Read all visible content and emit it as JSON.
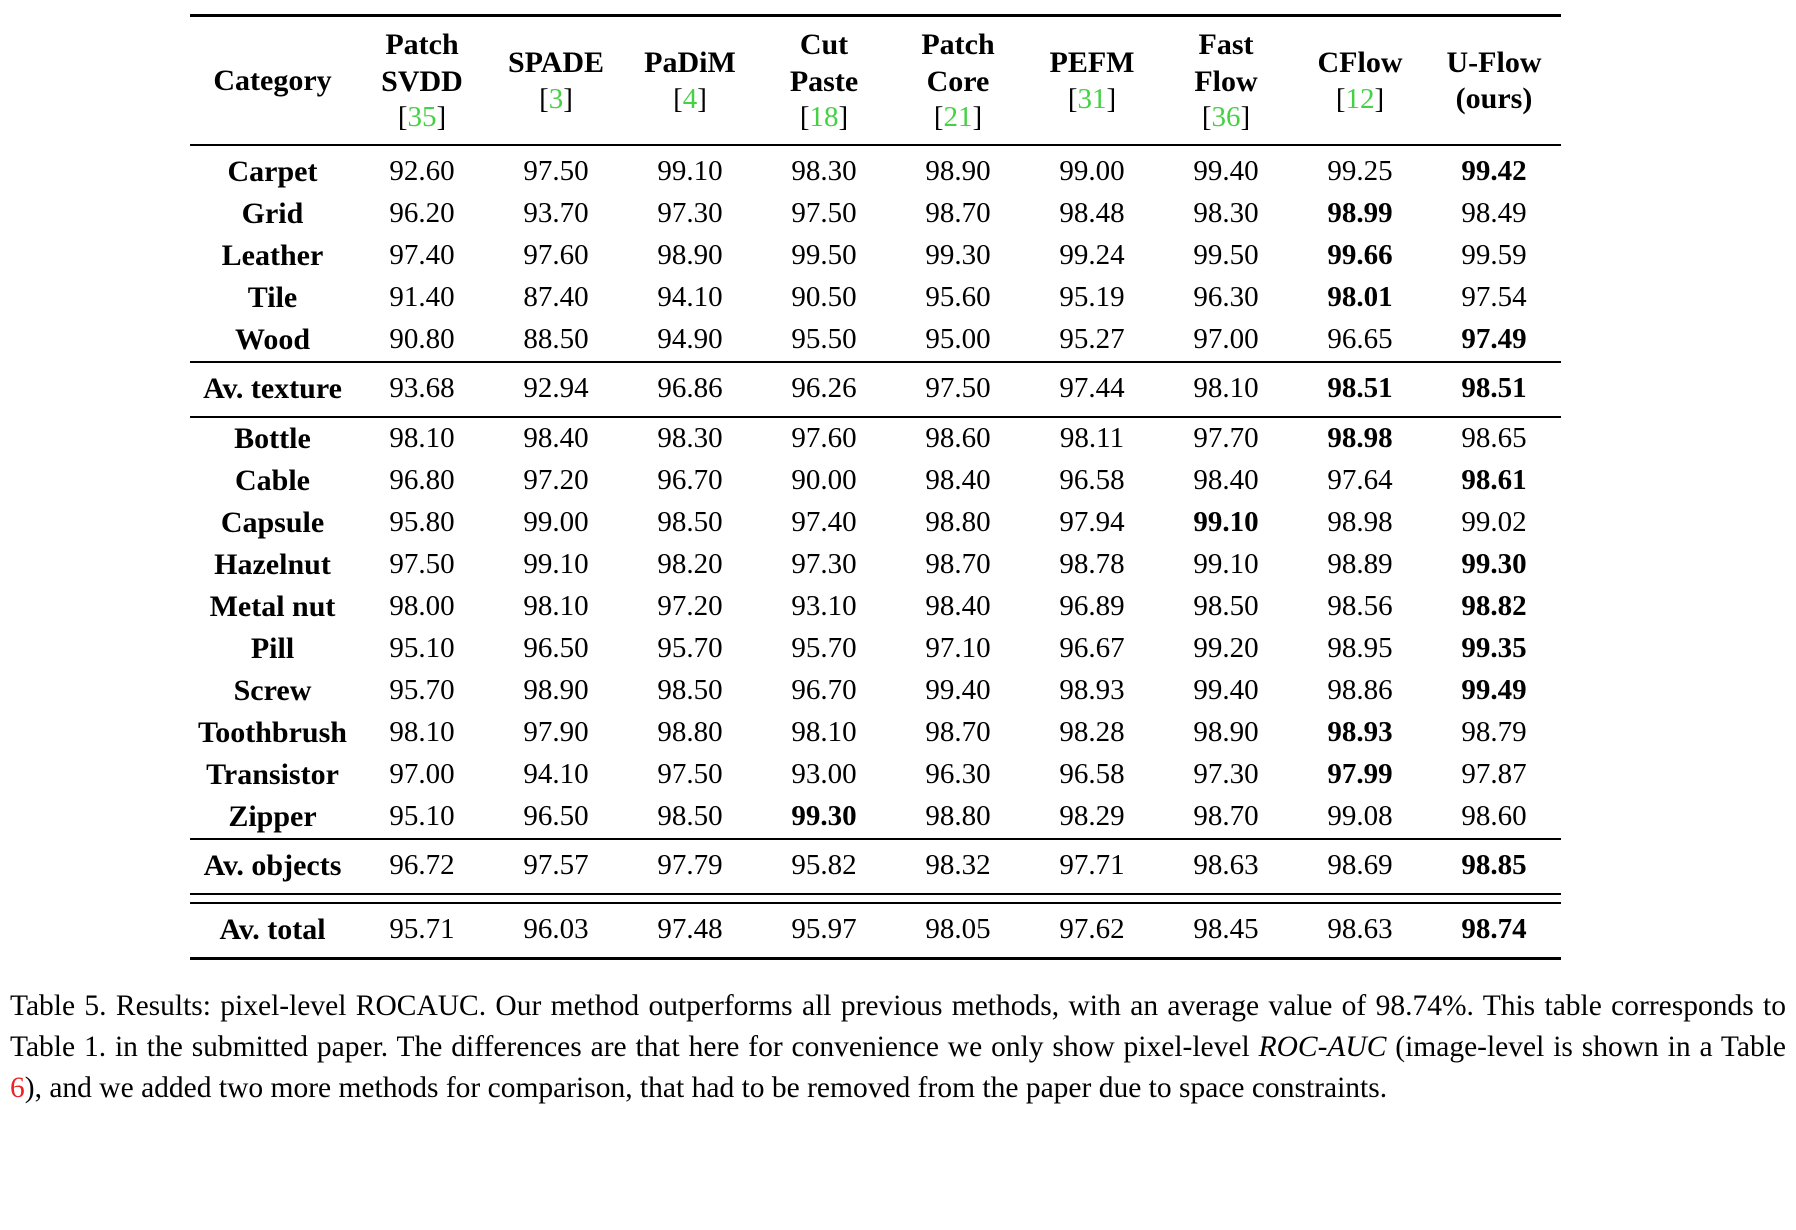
{
  "colors": {
    "citation_green": "#44d144",
    "link_red": "#ee2222"
  },
  "table": {
    "columns": [
      {
        "key": "category",
        "label": "Category",
        "cite": null
      },
      {
        "key": "patch-svdd",
        "label": "Patch\nSVDD",
        "cite": "35"
      },
      {
        "key": "spade",
        "label": "SPADE",
        "cite": "3"
      },
      {
        "key": "padim",
        "label": "PaDiM",
        "cite": "4"
      },
      {
        "key": "cut-paste",
        "label": "Cut\nPaste",
        "cite": "18"
      },
      {
        "key": "patch-core",
        "label": "Patch\nCore",
        "cite": "21"
      },
      {
        "key": "pefm",
        "label": "PEFM",
        "cite": "31"
      },
      {
        "key": "fast-flow",
        "label": "Fast\nFlow",
        "cite": "36"
      },
      {
        "key": "cflow",
        "label": "CFlow",
        "cite": "12"
      },
      {
        "key": "u-flow",
        "label": "U-Flow\n(ours)",
        "cite": null
      }
    ],
    "sections": [
      {
        "name": "textures",
        "rows": [
          {
            "category": "Carpet",
            "values": [
              "92.60",
              "97.50",
              "99.10",
              "98.30",
              "98.90",
              "99.00",
              "99.40",
              "99.25",
              "99.42"
            ],
            "bold": [
              8
            ]
          },
          {
            "category": "Grid",
            "values": [
              "96.20",
              "93.70",
              "97.30",
              "97.50",
              "98.70",
              "98.48",
              "98.30",
              "98.99",
              "98.49"
            ],
            "bold": [
              7
            ]
          },
          {
            "category": "Leather",
            "values": [
              "97.40",
              "97.60",
              "98.90",
              "99.50",
              "99.30",
              "99.24",
              "99.50",
              "99.66",
              "99.59"
            ],
            "bold": [
              7
            ]
          },
          {
            "category": "Tile",
            "values": [
              "91.40",
              "87.40",
              "94.10",
              "90.50",
              "95.60",
              "95.19",
              "96.30",
              "98.01",
              "97.54"
            ],
            "bold": [
              7
            ]
          },
          {
            "category": "Wood",
            "values": [
              "90.80",
              "88.50",
              "94.90",
              "95.50",
              "95.00",
              "95.27",
              "97.00",
              "96.65",
              "97.49"
            ],
            "bold": [
              8
            ]
          }
        ]
      },
      {
        "name": "average-texture",
        "avg": true,
        "rows": [
          {
            "category": "Av. texture",
            "values": [
              "93.68",
              "92.94",
              "96.86",
              "96.26",
              "97.50",
              "97.44",
              "98.10",
              "98.51",
              "98.51"
            ],
            "bold": [
              7,
              8
            ]
          }
        ]
      },
      {
        "name": "objects",
        "rows": [
          {
            "category": "Bottle",
            "values": [
              "98.10",
              "98.40",
              "98.30",
              "97.60",
              "98.60",
              "98.11",
              "97.70",
              "98.98",
              "98.65"
            ],
            "bold": [
              7
            ]
          },
          {
            "category": "Cable",
            "values": [
              "96.80",
              "97.20",
              "96.70",
              "90.00",
              "98.40",
              "96.58",
              "98.40",
              "97.64",
              "98.61"
            ],
            "bold": [
              8
            ]
          },
          {
            "category": "Capsule",
            "values": [
              "95.80",
              "99.00",
              "98.50",
              "97.40",
              "98.80",
              "97.94",
              "99.10",
              "98.98",
              "99.02"
            ],
            "bold": [
              6
            ]
          },
          {
            "category": "Hazelnut",
            "values": [
              "97.50",
              "99.10",
              "98.20",
              "97.30",
              "98.70",
              "98.78",
              "99.10",
              "98.89",
              "99.30"
            ],
            "bold": [
              8
            ]
          },
          {
            "category": "Metal nut",
            "values": [
              "98.00",
              "98.10",
              "97.20",
              "93.10",
              "98.40",
              "96.89",
              "98.50",
              "98.56",
              "98.82"
            ],
            "bold": [
              8
            ]
          },
          {
            "category": "Pill",
            "values": [
              "95.10",
              "96.50",
              "95.70",
              "95.70",
              "97.10",
              "96.67",
              "99.20",
              "98.95",
              "99.35"
            ],
            "bold": [
              8
            ]
          },
          {
            "category": "Screw",
            "values": [
              "95.70",
              "98.90",
              "98.50",
              "96.70",
              "99.40",
              "98.93",
              "99.40",
              "98.86",
              "99.49"
            ],
            "bold": [
              8
            ]
          },
          {
            "category": "Toothbrush",
            "values": [
              "98.10",
              "97.90",
              "98.80",
              "98.10",
              "98.70",
              "98.28",
              "98.90",
              "98.93",
              "98.79"
            ],
            "bold": [
              7
            ]
          },
          {
            "category": "Transistor",
            "values": [
              "97.00",
              "94.10",
              "97.50",
              "93.00",
              "96.30",
              "96.58",
              "97.30",
              "97.99",
              "97.87"
            ],
            "bold": [
              7
            ]
          },
          {
            "category": "Zipper",
            "values": [
              "95.10",
              "96.50",
              "98.50",
              "99.30",
              "98.80",
              "98.29",
              "98.70",
              "99.08",
              "98.60"
            ],
            "bold": [
              3
            ]
          }
        ]
      },
      {
        "name": "average-objects",
        "avg": true,
        "rows": [
          {
            "category": "Av. objects",
            "values": [
              "96.72",
              "97.57",
              "97.79",
              "95.82",
              "98.32",
              "97.71",
              "98.63",
              "98.69",
              "98.85"
            ],
            "bold": [
              8
            ]
          }
        ]
      },
      {
        "name": "average-total",
        "avg": true,
        "double_rule_above": true,
        "rows": [
          {
            "category": "Av. total",
            "values": [
              "95.71",
              "96.03",
              "97.48",
              "95.97",
              "98.05",
              "97.62",
              "98.45",
              "98.63",
              "98.74"
            ],
            "bold": [
              8
            ]
          }
        ]
      }
    ]
  },
  "caption": {
    "segments": [
      {
        "text": "Table 5.  Results: pixel-level ROCAUC. Our method outperforms all previous methods, with an average value of 98.74%.  This table corresponds to Table 1. in the submitted paper. The differences are that here for convenience we only show pixel-level ",
        "style": "normal"
      },
      {
        "text": "ROC-AUC",
        "style": "italic"
      },
      {
        "text": " (image-level is shown in a Table ",
        "style": "normal"
      },
      {
        "text": "6",
        "style": "red"
      },
      {
        "text": "), and we added two more methods for comparison, that had to be removed from the paper due to space constraints.",
        "style": "normal"
      }
    ]
  }
}
